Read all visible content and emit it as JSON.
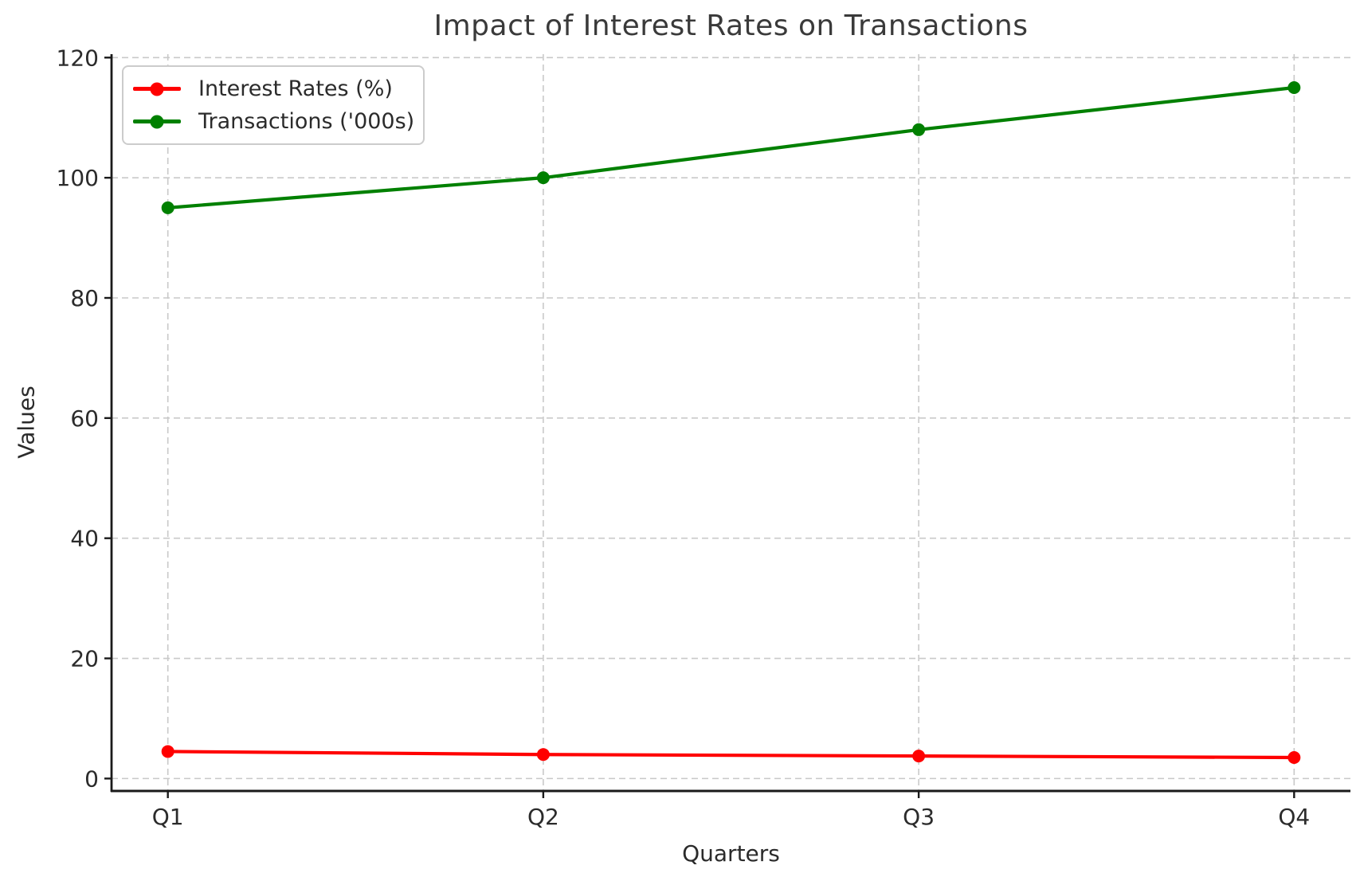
{
  "chart_data": {
    "type": "line",
    "title": "Impact of Interest Rates on Transactions",
    "xlabel": "Quarters",
    "ylabel": "Values",
    "categories": [
      "Q1",
      "Q2",
      "Q3",
      "Q4"
    ],
    "series": [
      {
        "name": "Interest Rates (%)",
        "color": "#ff0000",
        "values": [
          4.5,
          4.0,
          3.75,
          3.5
        ]
      },
      {
        "name": "Transactions ('000s)",
        "color": "#008000",
        "values": [
          95,
          100,
          108,
          115
        ]
      }
    ],
    "yticks": [
      0,
      20,
      40,
      60,
      80,
      100,
      120
    ],
    "ytick_labels": [
      "0",
      "20",
      "40",
      "60",
      "80",
      "100",
      "120"
    ],
    "ylim": [
      -2.07,
      120.57
    ],
    "grid": true,
    "grid_style": "dashed",
    "legend_position": "upper left"
  },
  "colors": {
    "background": "#ffffff",
    "grid": "#c9c9c9",
    "spine": "#1a1a1a",
    "text": "#2b2b2b",
    "title_text": "#3a3a3a",
    "legend_border": "#cccccc"
  }
}
